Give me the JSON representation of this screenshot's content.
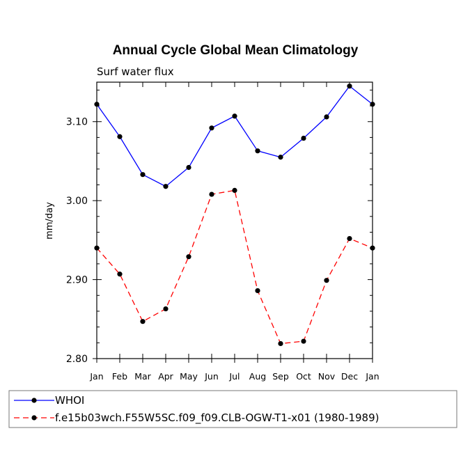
{
  "chart_data": {
    "type": "line",
    "title": "Annual Cycle Global Mean Climatology",
    "subtitle": "Surf water flux",
    "xlabel": "",
    "ylabel": "mm/day",
    "categories": [
      "Jan",
      "Feb",
      "Mar",
      "Apr",
      "May",
      "Jun",
      "Jul",
      "Aug",
      "Sep",
      "Oct",
      "Nov",
      "Dec",
      "Jan"
    ],
    "ylim": [
      2.8,
      3.15
    ],
    "yticks": [
      "2.80",
      "2.90",
      "3.00",
      "3.10"
    ],
    "series": [
      {
        "name": "WHOI",
        "color": "#0000ff",
        "style": "solid",
        "marker": "circle",
        "values": [
          3.122,
          3.081,
          3.033,
          3.018,
          3.042,
          3.092,
          3.107,
          3.063,
          3.055,
          3.079,
          3.106,
          3.145,
          3.122
        ]
      },
      {
        "name": "f.e15b03wch.F55W5SC.f09_f09.CLB-OGW-T1-x01 (1980-1989)",
        "color": "#ff0000",
        "style": "dashed",
        "marker": "circle",
        "values": [
          2.94,
          2.907,
          2.847,
          2.863,
          2.929,
          3.008,
          3.013,
          2.886,
          2.819,
          2.822,
          2.899,
          2.952,
          2.94
        ]
      }
    ],
    "legend_placement": "bottom",
    "grid": false
  }
}
